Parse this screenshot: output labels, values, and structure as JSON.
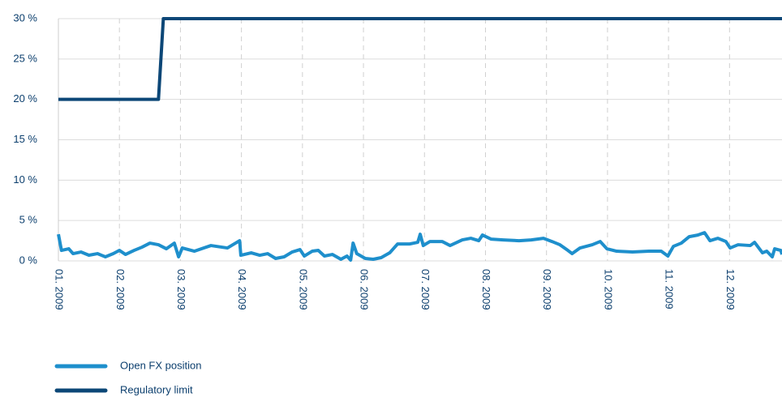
{
  "chart_data": {
    "type": "line",
    "series": [
      {
        "name": "Open FX position",
        "color": "#1e8fcc",
        "x": [
          0,
          0.05,
          0.17,
          0.24,
          0.37,
          0.5,
          0.64,
          0.77,
          0.9,
          1.0,
          1.1,
          1.24,
          1.37,
          1.5,
          1.64,
          1.77,
          1.9,
          1.97,
          2.03,
          2.23,
          2.5,
          2.77,
          2.97,
          2.99,
          3.16,
          3.3,
          3.43,
          3.56,
          3.7,
          3.83,
          3.96,
          4.03,
          4.16,
          4.26,
          4.36,
          4.49,
          4.63,
          4.73,
          4.79,
          4.83,
          4.89,
          5.03,
          5.16,
          5.29,
          5.43,
          5.56,
          5.76,
          5.89,
          5.93,
          5.98,
          6.09,
          6.29,
          6.42,
          6.62,
          6.76,
          6.89,
          6.95,
          7.09,
          7.29,
          7.55,
          7.75,
          7.95,
          8.09,
          8.22,
          8.35,
          8.42,
          8.55,
          8.75,
          8.88,
          8.99,
          9.15,
          9.41,
          9.68,
          9.88,
          9.99,
          10.08,
          10.21,
          10.34,
          10.48,
          10.59,
          10.68,
          10.81,
          10.94,
          11.01,
          11.14,
          11.34,
          11.41,
          11.54,
          11.61,
          11.7,
          11.74,
          11.84,
          11.86
        ],
        "values": [
          3.3,
          1.3,
          1.5,
          0.9,
          1.1,
          0.7,
          0.9,
          0.5,
          0.9,
          1.3,
          0.8,
          1.3,
          1.7,
          2.2,
          2.0,
          1.5,
          2.2,
          0.5,
          1.6,
          1.2,
          1.9,
          1.6,
          2.5,
          0.7,
          1.0,
          0.7,
          0.9,
          0.3,
          0.5,
          1.1,
          1.4,
          0.6,
          1.2,
          1.3,
          0.6,
          0.8,
          0.2,
          0.6,
          0.1,
          2.2,
          0.9,
          0.3,
          0.2,
          0.4,
          1.0,
          2.1,
          2.1,
          2.3,
          3.3,
          1.9,
          2.4,
          2.4,
          1.9,
          2.6,
          2.8,
          2.5,
          3.2,
          2.7,
          2.6,
          2.5,
          2.6,
          2.8,
          2.4,
          2.0,
          1.3,
          0.9,
          1.6,
          2.0,
          2.4,
          1.5,
          1.2,
          1.1,
          1.2,
          1.2,
          0.6,
          1.8,
          2.2,
          3.0,
          3.2,
          3.5,
          2.5,
          2.8,
          2.4,
          1.6,
          2.0,
          1.9,
          2.3,
          1.0,
          1.2,
          0.5,
          1.5,
          1.3,
          0.8
        ]
      },
      {
        "name": "Regulatory limit",
        "color": "#0c4777",
        "x": [
          0,
          1.64,
          1.72,
          11.86
        ],
        "values": [
          20,
          20,
          30,
          30
        ]
      }
    ],
    "xlim": [
      0,
      11.86
    ],
    "xticks": [
      {
        "value": 0,
        "label": "01. 2009"
      },
      {
        "value": 1,
        "label": "02. 2009"
      },
      {
        "value": 2,
        "label": "03. 2009"
      },
      {
        "value": 3,
        "label": "04. 2009"
      },
      {
        "value": 4,
        "label": "05. 2009"
      },
      {
        "value": 5,
        "label": "06. 2009"
      },
      {
        "value": 6,
        "label": "07. 2009"
      },
      {
        "value": 7,
        "label": "08. 2009"
      },
      {
        "value": 8,
        "label": "09. 2009"
      },
      {
        "value": 9,
        "label": "10. 2009"
      },
      {
        "value": 10,
        "label": "11. 2009"
      },
      {
        "value": 11,
        "label": "12. 2009"
      }
    ],
    "ylim": [
      0,
      30
    ],
    "yticks": [
      {
        "value": 0,
        "label": "0 %"
      },
      {
        "value": 5,
        "label": "5 %"
      },
      {
        "value": 10,
        "label": "10 %"
      },
      {
        "value": 15,
        "label": "15 %"
      },
      {
        "value": 20,
        "label": "20 %"
      },
      {
        "value": 25,
        "label": "25 %"
      },
      {
        "value": 30,
        "label": "30 %"
      }
    ],
    "grid": true
  }
}
